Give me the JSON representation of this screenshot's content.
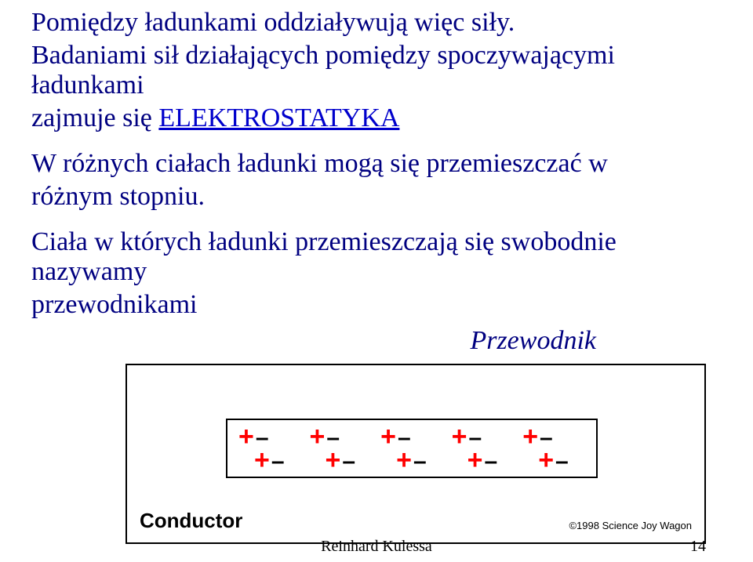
{
  "text": {
    "line1": "Pomiędzy ładunkami oddziaływują więc siły.",
    "line2": "Badaniami sił działających pomiędzy spoczywającymi ładunkami",
    "line3_pre": "zajmuje się ",
    "elektro": "ELEKTROSTATYKA",
    "line4": "W różnych ciałach ładunki mogą się przemieszczać w",
    "line5": "różnym stopniu.",
    "line6": "Ciała w których ładunki przemieszczają się swobodnie nazywamy",
    "line7": "przewodnikami",
    "przewodnik_label": "Przewodnik"
  },
  "diagram": {
    "outer_border_color": "#000000",
    "inner_border_color": "#000000",
    "background_color": "#ffffff",
    "plus_color": "#ff0000",
    "minus_color": "#000000",
    "num_pairs_row1": 5,
    "num_pairs_row2": 5,
    "conductor_text": "Conductor",
    "credit_text": "©1998 Science Joy Wagon"
  },
  "footer": {
    "author": "Reinhard Kulessa",
    "page": "14"
  },
  "colors": {
    "body_text": "#000080",
    "link": "#0000cc",
    "background": "#ffffff"
  }
}
